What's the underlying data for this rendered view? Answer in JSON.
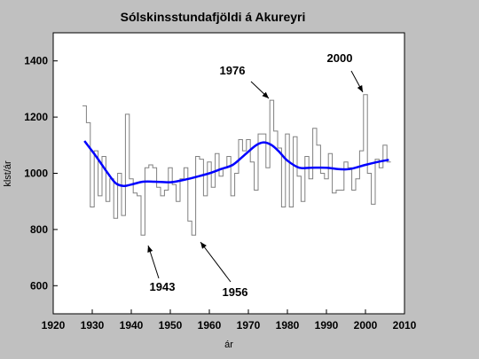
{
  "chart_data": {
    "type": "line",
    "title": "Sólskinsstundafjöldi á Akureyri",
    "xlabel": "ár",
    "ylabel": "klst/ár",
    "xlim": [
      1920,
      2010
    ],
    "ylim": [
      500,
      1500
    ],
    "xticks": [
      1920,
      1930,
      1940,
      1950,
      1960,
      1970,
      1980,
      1990,
      2000,
      2010
    ],
    "yticks": [
      600,
      800,
      1000,
      1200,
      1400
    ],
    "grid": false,
    "series": [
      {
        "style": "step",
        "color": "#808080",
        "x": [
          1928,
          1929,
          1930,
          1931,
          1932,
          1933,
          1934,
          1935,
          1936,
          1937,
          1938,
          1939,
          1940,
          1941,
          1942,
          1943,
          1944,
          1945,
          1946,
          1947,
          1948,
          1949,
          1950,
          1951,
          1952,
          1953,
          1954,
          1955,
          1956,
          1957,
          1958,
          1959,
          1960,
          1961,
          1962,
          1963,
          1964,
          1965,
          1966,
          1967,
          1968,
          1969,
          1970,
          1971,
          1972,
          1973,
          1974,
          1975,
          1976,
          1977,
          1978,
          1979,
          1980,
          1981,
          1982,
          1983,
          1984,
          1985,
          1986,
          1987,
          1988,
          1989,
          1990,
          1991,
          1992,
          1993,
          1994,
          1995,
          1996,
          1997,
          1998,
          1999,
          2000,
          2001,
          2002,
          2003,
          2004,
          2005,
          2006
        ],
        "y": [
          1240,
          1180,
          880,
          1080,
          920,
          1060,
          900,
          980,
          840,
          1000,
          850,
          1210,
          980,
          930,
          920,
          780,
          1020,
          1030,
          1020,
          950,
          920,
          940,
          1020,
          960,
          900,
          980,
          1020,
          830,
          780,
          1060,
          1050,
          920,
          1040,
          950,
          1070,
          990,
          1020,
          1060,
          920,
          1000,
          1120,
          1080,
          1120,
          1040,
          940,
          1140,
          1140,
          1020,
          1260,
          1150,
          1090,
          880,
          1140,
          880,
          1130,
          990,
          900,
          1060,
          980,
          1160,
          1100,
          1000,
          980,
          1070,
          930,
          940,
          940,
          1040,
          1020,
          940,
          980,
          1080,
          1280,
          1000,
          890,
          1050,
          1020,
          1100,
          1040
        ]
      },
      {
        "style": "smooth",
        "color": "#0000ff",
        "x": [
          1928,
          1931,
          1934,
          1936,
          1938,
          1940,
          1943,
          1946,
          1950,
          1953,
          1956,
          1960,
          1963,
          1966,
          1969,
          1972,
          1974,
          1976,
          1978,
          1980,
          1983,
          1986,
          1990,
          1993,
          1996,
          2000,
          2003,
          2006
        ],
        "y": [
          1115,
          1060,
          1000,
          965,
          955,
          960,
          970,
          970,
          968,
          975,
          985,
          1000,
          1015,
          1030,
          1065,
          1100,
          1110,
          1100,
          1075,
          1045,
          1020,
          1020,
          1020,
          1015,
          1015,
          1030,
          1040,
          1048
        ]
      }
    ],
    "annotations": [
      {
        "text": "1976"
      },
      {
        "text": "2000"
      },
      {
        "text": "1943"
      },
      {
        "text": "1956"
      }
    ]
  }
}
